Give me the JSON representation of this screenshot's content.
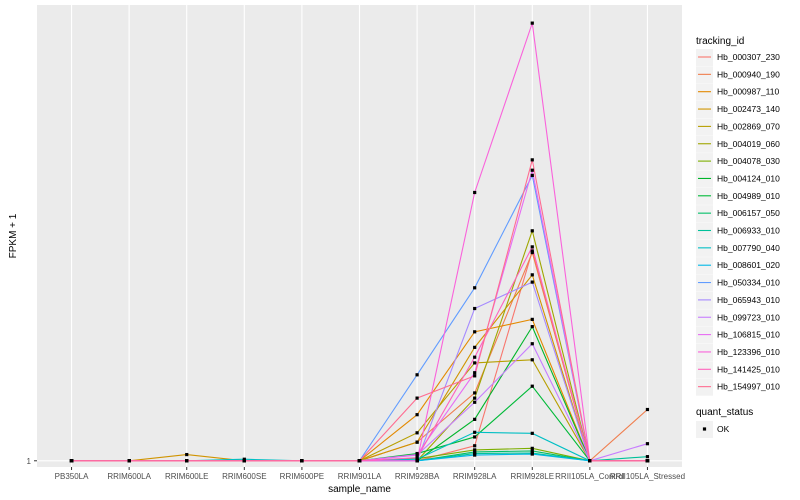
{
  "chart_data": {
    "type": "line",
    "xlabel": "sample_name",
    "ylabel": "FPKM + 1",
    "y_tick_labels": [
      "1"
    ],
    "y_ticks": [
      1
    ],
    "ylim": [
      0.88,
      9.8
    ],
    "grid": true,
    "legend_placement": "right",
    "categories": [
      "PB350LA",
      "RRIM600LA",
      "RRIM600LE",
      "RRIM600SE",
      "RRIM600PE",
      "RRIM901LA",
      "RRIM928BA",
      "RRIM928LA",
      "RRIM928LE",
      "RRII105LA_Control",
      "RRII105LA_Stressed"
    ],
    "legend_title": "tracking_id",
    "series": [
      {
        "name": "Hb_000307_230",
        "color": "#F8766D",
        "values": [
          1,
          1,
          1,
          1,
          1,
          1,
          1.0,
          1.29,
          5.05,
          1,
          1.0
        ]
      },
      {
        "name": "Hb_000940_190",
        "color": "#F07E4E",
        "values": [
          1,
          1,
          1,
          1,
          1,
          1,
          1.36,
          2.31,
          5.02,
          1,
          1.99
        ]
      },
      {
        "name": "Hb_000987_110",
        "color": "#E38900",
        "values": [
          1,
          1,
          1,
          1,
          1,
          1,
          1.89,
          3.49,
          3.73,
          1,
          1.0
        ]
      },
      {
        "name": "Hb_002473_140",
        "color": "#D09400",
        "values": [
          1,
          1,
          1.12,
          1,
          1,
          1,
          1.36,
          3.19,
          4.59,
          1,
          1.0
        ]
      },
      {
        "name": "Hb_002869_070",
        "color": "#B79F00",
        "values": [
          1,
          1,
          1,
          1,
          1,
          1,
          1.54,
          2.89,
          2.95,
          1,
          1.0
        ]
      },
      {
        "name": "Hb_004019_060",
        "color": "#9FA600",
        "values": [
          1,
          1,
          1,
          1,
          1,
          1,
          1.0,
          2.21,
          5.44,
          1,
          1.0
        ]
      },
      {
        "name": "Hb_004078_030",
        "color": "#7CAE00",
        "values": [
          1,
          1,
          1,
          1,
          1,
          1,
          1.04,
          1.21,
          1.24,
          1,
          1.0
        ]
      },
      {
        "name": "Hb_004124_010",
        "color": "#00B52B",
        "values": [
          1,
          1,
          1,
          1,
          1,
          1,
          1.0,
          1.8,
          3.59,
          1,
          1.0
        ]
      },
      {
        "name": "Hb_004989_010",
        "color": "#00BA38",
        "values": [
          1,
          1,
          1,
          1,
          1,
          1,
          1.14,
          1.46,
          2.44,
          1,
          1.0
        ]
      },
      {
        "name": "Hb_006157_050",
        "color": "#00BE67",
        "values": [
          1,
          1,
          1,
          1,
          1,
          1,
          1.0,
          1.17,
          1.19,
          1,
          1.0
        ]
      },
      {
        "name": "Hb_006933_010",
        "color": "#00C19A",
        "values": [
          1,
          1,
          1,
          1,
          1,
          1,
          1.0,
          1.14,
          1.15,
          1,
          1.08
        ]
      },
      {
        "name": "Hb_007790_040",
        "color": "#00BFC4",
        "values": [
          1,
          1,
          1,
          1.03,
          1,
          1,
          1.03,
          1.55,
          1.53,
          1,
          1.0
        ]
      },
      {
        "name": "Hb_008601_020",
        "color": "#00B8E7",
        "values": [
          1,
          1,
          1,
          1,
          1,
          1,
          1.0,
          1.11,
          1.13,
          1,
          1.0
        ]
      },
      {
        "name": "Hb_050334_010",
        "color": "#619CFF",
        "values": [
          1,
          1,
          1,
          1,
          1,
          1,
          2.66,
          4.34,
          6.51,
          1,
          1.0
        ]
      },
      {
        "name": "Hb_065943_010",
        "color": "#A58AFF",
        "values": [
          1,
          1,
          1,
          1,
          1,
          1,
          1.0,
          3.94,
          4.45,
          1,
          1.0
        ]
      },
      {
        "name": "Hb_099723_010",
        "color": "#C77CFF",
        "values": [
          1,
          1,
          1,
          1,
          1,
          1,
          1.11,
          2.13,
          3.26,
          1,
          1.33
        ]
      },
      {
        "name": "Hb_106815_010",
        "color": "#E76BF3",
        "values": [
          1,
          1,
          1,
          1,
          1,
          1,
          1.12,
          2.7,
          6.61,
          1,
          1.0
        ]
      },
      {
        "name": "Hb_123396_010",
        "color": "#FA62DB",
        "values": [
          1,
          1,
          1,
          1,
          1,
          1,
          1.0,
          6.18,
          9.45,
          1,
          1.0
        ]
      },
      {
        "name": "Hb_141425_010",
        "color": "#FF62BC",
        "values": [
          1,
          1,
          1,
          1,
          1,
          1,
          1.06,
          3.0,
          5.13,
          1,
          1.0
        ]
      },
      {
        "name": "Hb_154997_010",
        "color": "#FF6C91",
        "values": [
          1,
          1,
          1,
          1,
          1,
          1,
          2.21,
          2.64,
          6.81,
          1,
          1.0
        ]
      }
    ],
    "shape_legend": {
      "title": "quant_status",
      "items": [
        {
          "label": "OK",
          "shape": "square",
          "color": "#000000"
        }
      ]
    }
  }
}
